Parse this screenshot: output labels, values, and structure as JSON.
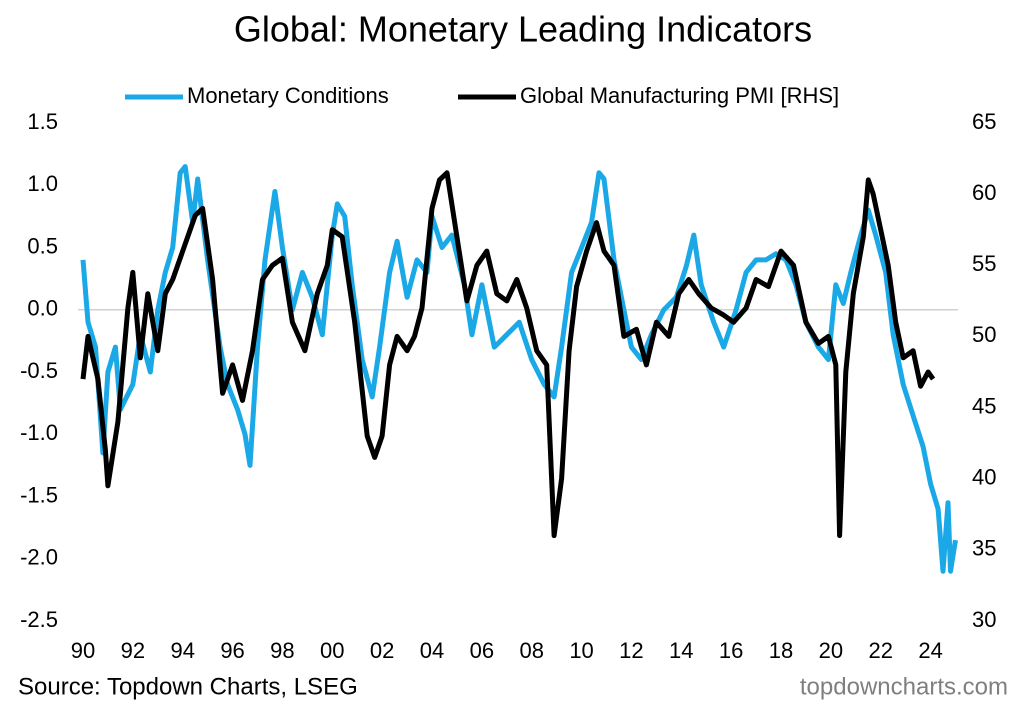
{
  "chart_data": {
    "type": "line",
    "title": "Global: Monetary Leading Indicators",
    "source": "Source: Topdown Charts, LSEG",
    "watermark": "topdowncharts.com",
    "xlim": [
      1989.8,
      2025.1
    ],
    "xticks": [
      {
        "value": 1990,
        "label": "90"
      },
      {
        "value": 1992,
        "label": "92"
      },
      {
        "value": 1994,
        "label": "94"
      },
      {
        "value": 1996,
        "label": "96"
      },
      {
        "value": 1998,
        "label": "98"
      },
      {
        "value": 2000,
        "label": "00"
      },
      {
        "value": 2002,
        "label": "02"
      },
      {
        "value": 2004,
        "label": "04"
      },
      {
        "value": 2006,
        "label": "06"
      },
      {
        "value": 2008,
        "label": "08"
      },
      {
        "value": 2010,
        "label": "10"
      },
      {
        "value": 2012,
        "label": "12"
      },
      {
        "value": 2014,
        "label": "14"
      },
      {
        "value": 2016,
        "label": "16"
      },
      {
        "value": 2018,
        "label": "18"
      },
      {
        "value": 2020,
        "label": "20"
      },
      {
        "value": 2022,
        "label": "22"
      },
      {
        "value": 2024,
        "label": "24"
      }
    ],
    "ylim": [
      -2.5,
      1.5
    ],
    "yticks": [
      -2.5,
      {
        "value": -2,
        "label": "-2.0"
      },
      -1.5,
      {
        "value": -1,
        "label": "-1.0"
      },
      -0.5,
      {
        "value": 0,
        "label": "0.0"
      },
      0.5,
      {
        "value": 1,
        "label": "1.0"
      },
      1.5
    ],
    "y2lim": [
      30,
      65
    ],
    "y2ticks": [
      30,
      35,
      40,
      45,
      50,
      55,
      60,
      65
    ],
    "series": [
      {
        "name": "Monetary Conditions",
        "color": "#1aa9e6",
        "x": [
          1990.0,
          1990.2,
          1990.5,
          1990.8,
          1991.0,
          1991.3,
          1991.5,
          1992.0,
          1992.3,
          1992.7,
          1993.0,
          1993.3,
          1993.6,
          1993.9,
          1994.1,
          1994.4,
          1994.6,
          1995.0,
          1995.5,
          1995.8,
          1996.2,
          1996.5,
          1996.7,
          1997.0,
          1997.3,
          1997.7,
          1998.0,
          1998.4,
          1998.8,
          1999.2,
          1999.6,
          2000.0,
          2000.2,
          2000.5,
          2000.8,
          2001.2,
          2001.6,
          2001.9,
          2002.3,
          2002.6,
          2003.0,
          2003.4,
          2003.8,
          2004.0,
          2004.4,
          2004.8,
          2005.3,
          2005.6,
          2006.0,
          2006.5,
          2007.0,
          2007.5,
          2008.0,
          2008.5,
          2008.9,
          2009.2,
          2009.6,
          2010.0,
          2010.4,
          2010.7,
          2010.9,
          2011.3,
          2011.7,
          2012.0,
          2012.4,
          2012.8,
          2013.3,
          2013.8,
          2014.2,
          2014.5,
          2014.8,
          2015.3,
          2015.7,
          2016.2,
          2016.6,
          2017.0,
          2017.4,
          2017.8,
          2018.2,
          2018.6,
          2019.0,
          2019.5,
          2019.9,
          2020.2,
          2020.5,
          2020.8,
          2021.2,
          2021.5,
          2021.8,
          2022.2,
          2022.5,
          2022.9,
          2023.3,
          2023.7,
          2024.0,
          2024.3,
          2024.5,
          2024.7,
          2024.8,
          2025.0
        ],
        "values": [
          0.4,
          -0.1,
          -0.3,
          -1.15,
          -0.5,
          -0.3,
          -0.8,
          -0.6,
          -0.2,
          -0.5,
          0.0,
          0.3,
          0.5,
          1.1,
          1.15,
          0.7,
          1.05,
          0.4,
          -0.3,
          -0.6,
          -0.8,
          -1.0,
          -1.25,
          -0.3,
          0.4,
          0.95,
          0.5,
          0.0,
          0.3,
          0.1,
          -0.2,
          0.6,
          0.85,
          0.75,
          0.2,
          -0.4,
          -0.7,
          -0.3,
          0.3,
          0.55,
          0.1,
          0.4,
          0.3,
          0.75,
          0.5,
          0.6,
          0.2,
          -0.2,
          0.2,
          -0.3,
          -0.2,
          -0.1,
          -0.4,
          -0.6,
          -0.7,
          -0.3,
          0.3,
          0.5,
          0.7,
          1.1,
          1.05,
          0.4,
          0.0,
          -0.3,
          -0.4,
          -0.2,
          0.0,
          0.1,
          0.35,
          0.6,
          0.2,
          -0.1,
          -0.3,
          0.0,
          0.3,
          0.4,
          0.4,
          0.45,
          0.4,
          0.2,
          -0.1,
          -0.3,
          -0.4,
          0.2,
          0.05,
          0.3,
          0.6,
          0.8,
          0.6,
          0.3,
          -0.2,
          -0.6,
          -0.85,
          -1.1,
          -1.4,
          -1.6,
          -2.1,
          -1.55,
          -2.1,
          -1.85
        ]
      },
      {
        "name": "Global Manufacturing PMI [RHS]",
        "color": "#000000",
        "axis": "y2",
        "x": [
          1990.0,
          1990.2,
          1990.6,
          1990.9,
          1991.0,
          1991.4,
          1991.8,
          1992.0,
          1992.3,
          1992.6,
          1993.0,
          1993.3,
          1993.6,
          1994.0,
          1994.5,
          1994.8,
          1995.2,
          1995.6,
          1996.0,
          1996.4,
          1996.8,
          1997.2,
          1997.6,
          1998.0,
          1998.4,
          1998.9,
          1999.4,
          1999.8,
          2000.0,
          2000.4,
          2000.9,
          2001.4,
          2001.7,
          2002.0,
          2002.3,
          2002.6,
          2003.0,
          2003.3,
          2003.6,
          2004.0,
          2004.3,
          2004.6,
          2005.0,
          2005.4,
          2005.8,
          2006.2,
          2006.6,
          2007.0,
          2007.4,
          2007.8,
          2008.2,
          2008.6,
          2008.9,
          2009.2,
          2009.5,
          2009.8,
          2010.2,
          2010.6,
          2010.9,
          2011.3,
          2011.7,
          2012.2,
          2012.6,
          2013.0,
          2013.5,
          2013.9,
          2014.3,
          2014.7,
          2015.2,
          2015.7,
          2016.1,
          2016.6,
          2017.0,
          2017.5,
          2018.0,
          2018.5,
          2019.0,
          2019.5,
          2019.9,
          2020.2,
          2020.35,
          2020.6,
          2020.9,
          2021.3,
          2021.5,
          2021.7,
          2022.0,
          2022.3,
          2022.6,
          2022.9,
          2023.3,
          2023.6,
          2023.9,
          2024.1
        ],
        "values": [
          47,
          50,
          47,
          42,
          39.5,
          44,
          52,
          54.5,
          48.5,
          53,
          49,
          53,
          54,
          56,
          58.5,
          59,
          54,
          46,
          48,
          45.5,
          49,
          54,
          55,
          55.5,
          51,
          49,
          53,
          55,
          57.5,
          57,
          51,
          43,
          41.5,
          43,
          48,
          50,
          49,
          50,
          52,
          59,
          61,
          61.5,
          57,
          52.5,
          55,
          56,
          53,
          52.5,
          54,
          52,
          49,
          48,
          36,
          40,
          49,
          53.5,
          56,
          58,
          56,
          55,
          50,
          50.5,
          48,
          51,
          50,
          53,
          54,
          53,
          52,
          51.5,
          51,
          52,
          54,
          53.5,
          56,
          55,
          51,
          49.5,
          50,
          48,
          36,
          47.5,
          53,
          57,
          61,
          60,
          57.5,
          55,
          51,
          48.5,
          49,
          46.5,
          47.5,
          47
        ]
      }
    ],
    "legend": "top"
  }
}
